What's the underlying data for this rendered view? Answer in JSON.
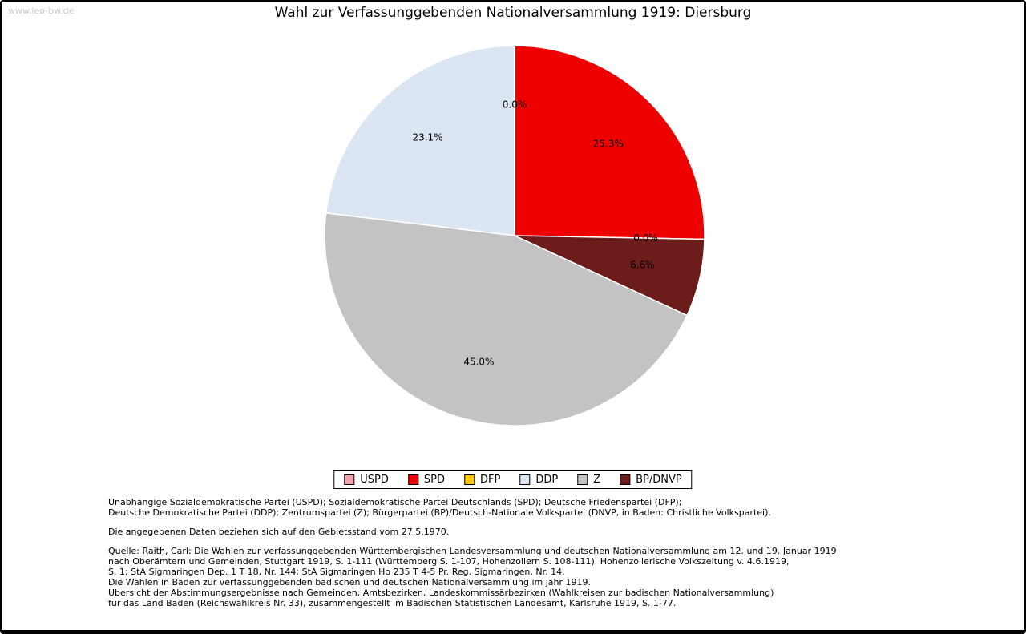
{
  "watermark": "www.leo-bw.de",
  "chart_data": {
    "type": "pie",
    "title": "Wahl zur Verfassunggebenden Nationalversammlung 1919: Diersburg",
    "unit": "%",
    "start_angle": "12-o-clock",
    "direction": "clockwise",
    "slices": [
      {
        "party": "USPD",
        "value": 0.0,
        "label": "0.0%",
        "color": "#f2a3ad"
      },
      {
        "party": "SPD",
        "value": 25.3,
        "label": "25.3%",
        "color": "#ee0000"
      },
      {
        "party": "DFP",
        "value": 0.0,
        "label": "0.0%",
        "color": "#fdc800"
      },
      {
        "party": "BP/DNVP",
        "value": 6.6,
        "label": "6.6%",
        "color": "#6d1c1c"
      },
      {
        "party": "Z",
        "value": 45.0,
        "label": "45.0%",
        "color": "#c3c3c3"
      },
      {
        "party": "DDP",
        "value": 23.1,
        "label": "23.1%",
        "color": "#dce6f2"
      }
    ],
    "legend": [
      {
        "label": "USPD",
        "color": "#f2a3ad"
      },
      {
        "label": "SPD",
        "color": "#ee0000"
      },
      {
        "label": "DFP",
        "color": "#fdc800"
      },
      {
        "label": "DDP",
        "color": "#dce6f2"
      },
      {
        "label": "Z",
        "color": "#c3c3c3"
      },
      {
        "label": "BP/DNVP",
        "color": "#6d1c1c"
      }
    ],
    "legend_position": "bottom"
  },
  "footnotes": {
    "parties_lines": [
      "Unabhängige Sozialdemokratische Partei (USPD); Sozialdemokratische Partei Deutschlands (SPD); Deutsche Friedenspartei (DFP);",
      "Deutsche Demokratische Partei (DDP); Zentrumspartei (Z); Bürgerpartei (BP)/Deutsch-Nationale Volkspartei (DNVP, in Baden: Christliche Volkspartei)."
    ],
    "gebietsstand": "Die angegebenen Daten beziehen sich auf den Gebietsstand vom 27.5.1970.",
    "quelle_lines": [
      "Quelle: Raith, Carl: Die Wahlen zur verfassunggebenden Württembergischen Landesversammlung und deutschen Nationalversammlung am 12. und 19. Januar 1919",
      "nach Oberämtern und Gemeinden, Stuttgart 1919, S. 1-111 (Württemberg S. 1-107, Hohenzollern S. 108-111). Hohenzollerische Volkszeitung v. 4.6.1919,",
      "S. 1; StA Sigmaringen Dep. 1 T 18, Nr. 144; StA Sigmaringen Ho 235 T 4-5 Pr. Reg. Sigmaringen, Nr. 14.",
      "Die Wahlen in Baden zur verfassunggebenden badischen und deutschen Nationalversammlung im jahr 1919.",
      "Übersicht der Abstimmungsergebnisse nach Gemeinden, Amtsbezirken, Landeskommissärbezirken (Wahlkreisen zur badischen Nationalversammlung)",
      "für das Land Baden (Reichswahlkreis Nr. 33), zusammengestellt im Badischen Statistischen Landesamt, Karlsruhe 1919, S. 1-77."
    ]
  }
}
